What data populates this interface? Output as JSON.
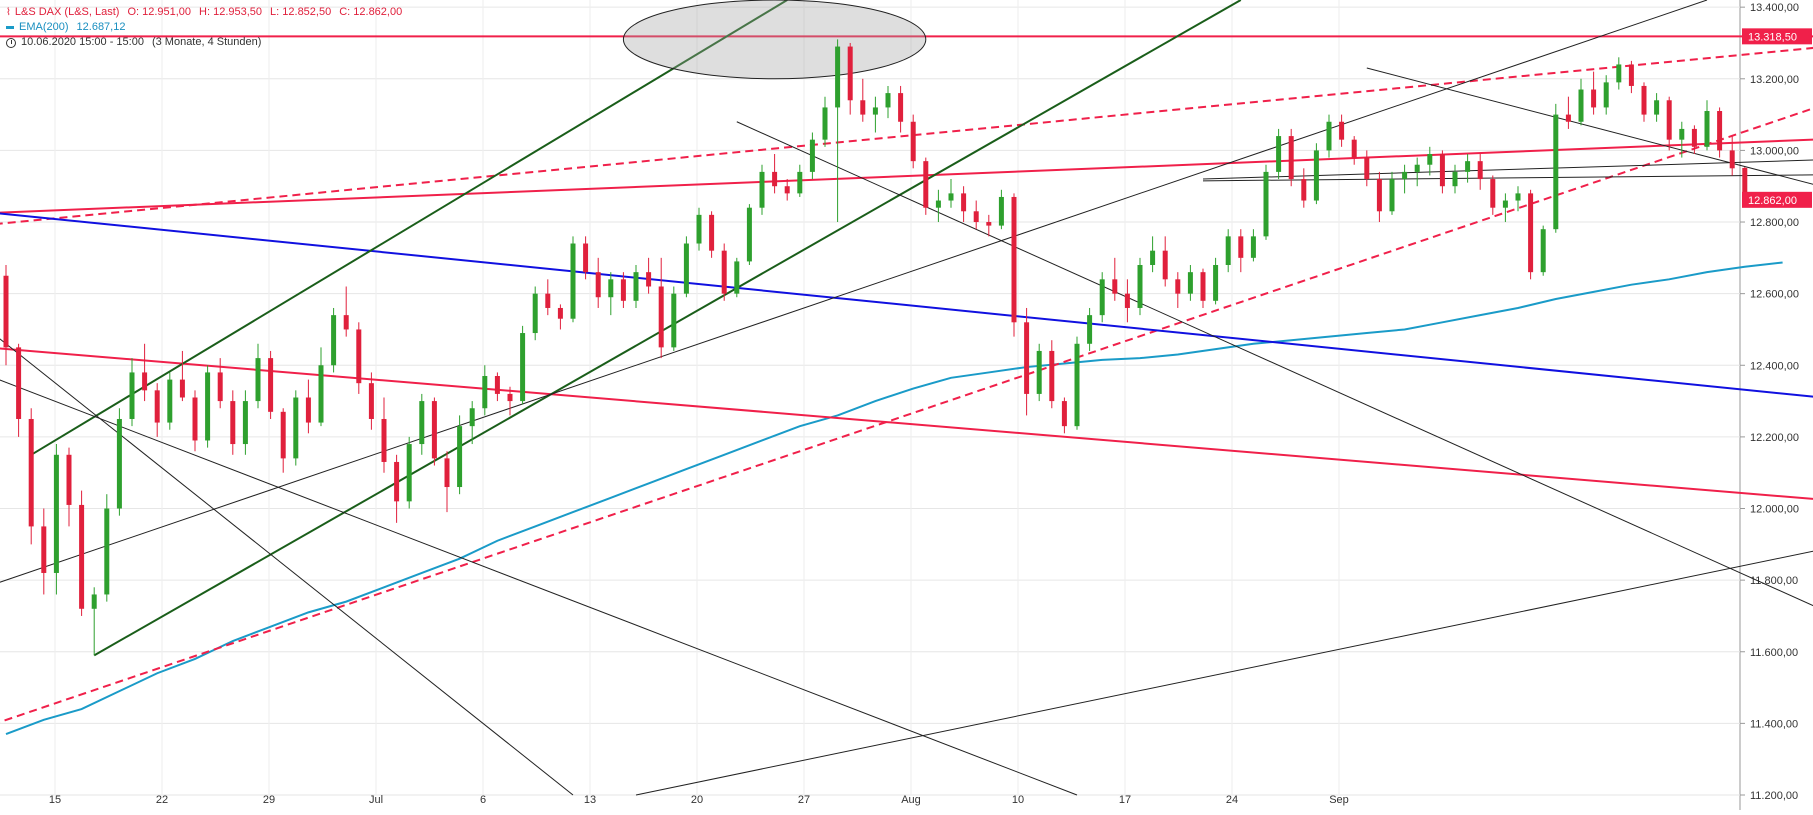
{
  "legend": {
    "instrument": "L&S DAX (L&S, Last)",
    "open": "O: 12.951,00",
    "high": "H: 12.953,50",
    "low": "L: 12.852,50",
    "close": "C: 12.862,00",
    "ema": "EMA(200)",
    "ema_value": "12.687,12",
    "timestamp": "10.06.2020 15:00 - 15:00",
    "range": "(3 Monate, 4 Stunden)"
  },
  "colors": {
    "up": "#2ea02e",
    "down": "#e0203c",
    "ema": "#1a9bc8",
    "blue_line": "#1010e0",
    "red_line": "#f0204a",
    "green_line": "#1a5e1a",
    "black_line": "#222222"
  },
  "chart_data": {
    "type": "candlestick",
    "title": "",
    "ylim": [
      11200,
      13420
    ],
    "y_ticks": [
      "13.400,00",
      "13.200,00",
      "13.000,00",
      "12.800,00",
      "12.600,00",
      "12.400,00",
      "12.200,00",
      "12.000,00",
      "11.800,00",
      "11.600,00",
      "11.400,00",
      "11.200,00"
    ],
    "x_ticks": [
      "15",
      "22",
      "29",
      "Jul",
      "6",
      "13",
      "20",
      "27",
      "Aug",
      "10",
      "17",
      "24",
      "Sep"
    ],
    "price_labels": [
      "13.318,50",
      "12.862,00"
    ],
    "price_label_values": [
      13318.5,
      12862
    ],
    "grid": true,
    "ema_series": {
      "name": "EMA(200)",
      "points": [
        [
          0,
          11370
        ],
        [
          3,
          11410
        ],
        [
          6,
          11440
        ],
        [
          9,
          11490
        ],
        [
          12,
          11540
        ],
        [
          15,
          11580
        ],
        [
          18,
          11630
        ],
        [
          21,
          11670
        ],
        [
          24,
          11710
        ],
        [
          27,
          11740
        ],
        [
          30,
          11780
        ],
        [
          33,
          11820
        ],
        [
          36,
          11860
        ],
        [
          39,
          11910
        ],
        [
          42,
          11950
        ],
        [
          45,
          11990
        ],
        [
          48,
          12030
        ],
        [
          51,
          12070
        ],
        [
          54,
          12110
        ],
        [
          57,
          12150
        ],
        [
          60,
          12190
        ],
        [
          63,
          12230
        ],
        [
          66,
          12260
        ],
        [
          69,
          12300
        ],
        [
          72,
          12335
        ],
        [
          75,
          12365
        ],
        [
          78,
          12380
        ],
        [
          81,
          12395
        ],
        [
          84,
          12405
        ],
        [
          87,
          12415
        ],
        [
          90,
          12420
        ],
        [
          93,
          12430
        ],
        [
          96,
          12445
        ],
        [
          99,
          12460
        ],
        [
          102,
          12470
        ],
        [
          105,
          12480
        ],
        [
          108,
          12490
        ],
        [
          111,
          12500
        ],
        [
          114,
          12520
        ],
        [
          117,
          12540
        ],
        [
          120,
          12560
        ],
        [
          123,
          12585
        ],
        [
          126,
          12605
        ],
        [
          129,
          12625
        ],
        [
          132,
          12640
        ],
        [
          135,
          12660
        ],
        [
          138,
          12675
        ],
        [
          141,
          12687
        ]
      ]
    },
    "candles": [
      [
        12650,
        12680,
        12400,
        12450
      ],
      [
        12450,
        12460,
        12200,
        12250
      ],
      [
        12250,
        12280,
        11900,
        11950
      ],
      [
        11950,
        12000,
        11760,
        11820
      ],
      [
        11820,
        12180,
        11760,
        12150
      ],
      [
        12150,
        12170,
        11950,
        12010
      ],
      [
        12010,
        12050,
        11700,
        11720
      ],
      [
        11720,
        11780,
        11590,
        11760
      ],
      [
        11760,
        12040,
        11740,
        12000
      ],
      [
        12000,
        12280,
        11980,
        12250
      ],
      [
        12250,
        12420,
        12230,
        12380
      ],
      [
        12380,
        12460,
        12300,
        12330
      ],
      [
        12330,
        12350,
        12200,
        12240
      ],
      [
        12240,
        12380,
        12220,
        12360
      ],
      [
        12360,
        12440,
        12300,
        12310
      ],
      [
        12310,
        12330,
        12160,
        12190
      ],
      [
        12190,
        12400,
        12170,
        12380
      ],
      [
        12380,
        12420,
        12280,
        12300
      ],
      [
        12300,
        12330,
        12150,
        12180
      ],
      [
        12180,
        12330,
        12150,
        12300
      ],
      [
        12300,
        12460,
        12280,
        12420
      ],
      [
        12420,
        12440,
        12250,
        12270
      ],
      [
        12270,
        12280,
        12100,
        12140
      ],
      [
        12140,
        12330,
        12120,
        12310
      ],
      [
        12310,
        12360,
        12210,
        12240
      ],
      [
        12240,
        12450,
        12230,
        12400
      ],
      [
        12400,
        12560,
        12380,
        12540
      ],
      [
        12540,
        12620,
        12480,
        12500
      ],
      [
        12500,
        12520,
        12320,
        12350
      ],
      [
        12350,
        12380,
        12220,
        12250
      ],
      [
        12250,
        12310,
        12100,
        12130
      ],
      [
        12130,
        12150,
        11960,
        12020
      ],
      [
        12020,
        12200,
        12000,
        12180
      ],
      [
        12180,
        12320,
        12150,
        12300
      ],
      [
        12300,
        12310,
        12120,
        12140
      ],
      [
        12140,
        12160,
        11990,
        12060
      ],
      [
        12060,
        12260,
        12040,
        12230
      ],
      [
        12230,
        12300,
        12180,
        12280
      ],
      [
        12280,
        12400,
        12260,
        12370
      ],
      [
        12370,
        12380,
        12300,
        12320
      ],
      [
        12320,
        12340,
        12260,
        12300
      ],
      [
        12300,
        12510,
        12290,
        12490
      ],
      [
        12490,
        12620,
        12470,
        12600
      ],
      [
        12600,
        12640,
        12540,
        12560
      ],
      [
        12560,
        12570,
        12500,
        12530
      ],
      [
        12530,
        12760,
        12520,
        12740
      ],
      [
        12740,
        12760,
        12640,
        12660
      ],
      [
        12660,
        12700,
        12560,
        12590
      ],
      [
        12590,
        12660,
        12540,
        12640
      ],
      [
        12640,
        12660,
        12560,
        12580
      ],
      [
        12580,
        12680,
        12560,
        12660
      ],
      [
        12660,
        12700,
        12600,
        12620
      ],
      [
        12620,
        12700,
        12420,
        12450
      ],
      [
        12450,
        12620,
        12440,
        12600
      ],
      [
        12600,
        12760,
        12590,
        12740
      ],
      [
        12740,
        12840,
        12720,
        12820
      ],
      [
        12820,
        12830,
        12700,
        12720
      ],
      [
        12720,
        12740,
        12580,
        12600
      ],
      [
        12600,
        12700,
        12590,
        12690
      ],
      [
        12690,
        12850,
        12680,
        12840
      ],
      [
        12840,
        12960,
        12820,
        12940
      ],
      [
        12940,
        12990,
        12880,
        12900
      ],
      [
        12900,
        12920,
        12860,
        12880
      ],
      [
        12880,
        12960,
        12870,
        12940
      ],
      [
        12940,
        13050,
        12920,
        13030
      ],
      [
        13030,
        13150,
        13010,
        13120
      ],
      [
        13120,
        13310,
        12800,
        13290
      ],
      [
        13290,
        13300,
        13100,
        13140
      ],
      [
        13140,
        13200,
        13080,
        13100
      ],
      [
        13100,
        13150,
        13050,
        13120
      ],
      [
        13120,
        13180,
        13090,
        13160
      ],
      [
        13160,
        13180,
        13050,
        13080
      ],
      [
        13080,
        13100,
        12950,
        12970
      ],
      [
        12970,
        12980,
        12820,
        12840
      ],
      [
        12840,
        12890,
        12800,
        12860
      ],
      [
        12860,
        12920,
        12840,
        12880
      ],
      [
        12880,
        12900,
        12800,
        12830
      ],
      [
        12830,
        12860,
        12780,
        12800
      ],
      [
        12800,
        12820,
        12760,
        12790
      ],
      [
        12790,
        12890,
        12780,
        12870
      ],
      [
        12870,
        12880,
        12480,
        12520
      ],
      [
        12520,
        12560,
        12260,
        12320
      ],
      [
        12320,
        12460,
        12300,
        12440
      ],
      [
        12440,
        12470,
        12280,
        12300
      ],
      [
        12300,
        12310,
        12210,
        12230
      ],
      [
        12230,
        12480,
        12220,
        12460
      ],
      [
        12460,
        12560,
        12440,
        12540
      ],
      [
        12540,
        12660,
        12520,
        12640
      ],
      [
        12640,
        12700,
        12580,
        12600
      ],
      [
        12600,
        12640,
        12520,
        12560
      ],
      [
        12560,
        12700,
        12540,
        12680
      ],
      [
        12680,
        12760,
        12660,
        12720
      ],
      [
        12720,
        12760,
        12620,
        12640
      ],
      [
        12640,
        12660,
        12560,
        12600
      ],
      [
        12600,
        12680,
        12580,
        12660
      ],
      [
        12660,
        12670,
        12560,
        12580
      ],
      [
        12580,
        12700,
        12570,
        12680
      ],
      [
        12680,
        12780,
        12660,
        12760
      ],
      [
        12760,
        12780,
        12660,
        12700
      ],
      [
        12700,
        12780,
        12690,
        12760
      ],
      [
        12760,
        12960,
        12750,
        12940
      ],
      [
        12940,
        13060,
        12920,
        13040
      ],
      [
        13040,
        13060,
        12900,
        12920
      ],
      [
        12920,
        12950,
        12840,
        12860
      ],
      [
        12860,
        13020,
        12850,
        13000
      ],
      [
        13000,
        13100,
        12980,
        13080
      ],
      [
        13080,
        13100,
        13010,
        13030
      ],
      [
        13030,
        13040,
        12960,
        12980
      ],
      [
        12980,
        13000,
        12900,
        12920
      ],
      [
        12920,
        12940,
        12800,
        12830
      ],
      [
        12830,
        12940,
        12820,
        12920
      ],
      [
        12920,
        12960,
        12880,
        12940
      ],
      [
        12940,
        12980,
        12900,
        12960
      ],
      [
        12960,
        13010,
        12930,
        12990
      ],
      [
        12990,
        13000,
        12880,
        12900
      ],
      [
        12900,
        12960,
        12880,
        12940
      ],
      [
        12940,
        12990,
        12910,
        12970
      ],
      [
        12970,
        12990,
        12890,
        12920
      ],
      [
        12920,
        12930,
        12820,
        12840
      ],
      [
        12840,
        12880,
        12800,
        12860
      ],
      [
        12860,
        12900,
        12830,
        12880
      ],
      [
        12880,
        12890,
        12640,
        12660
      ],
      [
        12660,
        12790,
        12650,
        12780
      ],
      [
        12780,
        13130,
        12770,
        13100
      ],
      [
        13100,
        13150,
        13060,
        13080
      ],
      [
        13080,
        13200,
        13070,
        13170
      ],
      [
        13170,
        13220,
        13100,
        13120
      ],
      [
        13120,
        13210,
        13100,
        13190
      ],
      [
        13190,
        13260,
        13170,
        13240
      ],
      [
        13240,
        13250,
        13160,
        13180
      ],
      [
        13180,
        13190,
        13080,
        13100
      ],
      [
        13100,
        13160,
        13080,
        13140
      ],
      [
        13140,
        13150,
        13000,
        13030
      ],
      [
        13030,
        13080,
        12980,
        13060
      ],
      [
        13060,
        13070,
        12990,
        13010
      ],
      [
        13010,
        13140,
        13000,
        13110
      ],
      [
        13110,
        13120,
        12980,
        13000
      ],
      [
        13000,
        13040,
        12930,
        12950
      ],
      [
        12951,
        12953.5,
        12852.5,
        12862
      ]
    ],
    "trend_lines": [
      {
        "name": "horizontal resistance",
        "color": "red_line",
        "dash": false,
        "from": [
          -5,
          13318.5
        ],
        "to": [
          168,
          13318.5
        ]
      },
      {
        "name": "upper red",
        "color": "red_line",
        "dash": false,
        "from": [
          -5,
          12820
        ],
        "to": [
          168,
          13065
        ]
      },
      {
        "name": "upper red dashed",
        "color": "red_line",
        "dash": true,
        "from": [
          -5,
          12780
        ],
        "to": [
          168,
          13370
        ]
      },
      {
        "name": "lower red",
        "color": "red_line",
        "dash": false,
        "from": [
          -5,
          12460
        ],
        "to": [
          168,
          11955
        ]
      },
      {
        "name": "rising red dashed",
        "color": "red_line",
        "dash": true,
        "from": [
          -5,
          11350
        ],
        "to": [
          168,
          13410
        ]
      },
      {
        "name": "blue",
        "color": "blue_line",
        "dash": false,
        "from": [
          -5,
          12840
        ],
        "to": [
          168,
          12225
        ]
      },
      {
        "name": "green channel upper",
        "color": "green_line",
        "dash": false,
        "from": [
          2,
          12150
        ],
        "to": [
          62,
          13420
        ]
      },
      {
        "name": "green channel mid",
        "color": "green_line",
        "dash": false,
        "from": [
          7,
          11590
        ],
        "to": [
          98,
          13420
        ]
      },
      {
        "name": "black long rising",
        "color": "black_line",
        "dash": false,
        "from": [
          -5,
          11740
        ],
        "to": [
          135,
          13420
        ]
      },
      {
        "name": "black low rising",
        "color": "black_line",
        "dash": false,
        "from": [
          50,
          11200
        ],
        "to": [
          168,
          12060
        ]
      },
      {
        "name": "black steep fall",
        "color": "black_line",
        "dash": false,
        "from": [
          -5,
          12600
        ],
        "to": [
          45,
          11200
        ]
      },
      {
        "name": "black fall 2",
        "color": "black_line",
        "dash": false,
        "from": [
          -5,
          12420
        ],
        "to": [
          85,
          11200
        ]
      },
      {
        "name": "black fall 3",
        "color": "black_line",
        "dash": false,
        "from": [
          58,
          13080
        ],
        "to": [
          168,
          11340
        ]
      },
      {
        "name": "black fall 4",
        "color": "black_line",
        "dash": false,
        "from": [
          108,
          13230
        ],
        "to": [
          168,
          12680
        ]
      },
      {
        "name": "black flat 1",
        "color": "black_line",
        "dash": false,
        "from": [
          95,
          12920
        ],
        "to": [
          168,
          13000
        ]
      },
      {
        "name": "black flat 2",
        "color": "black_line",
        "dash": false,
        "from": [
          95,
          12915
        ],
        "to": [
          168,
          12940
        ]
      }
    ],
    "ellipse": {
      "center": [
        61,
        13310
      ],
      "rx_bars": 12,
      "ry_value": 110
    }
  }
}
